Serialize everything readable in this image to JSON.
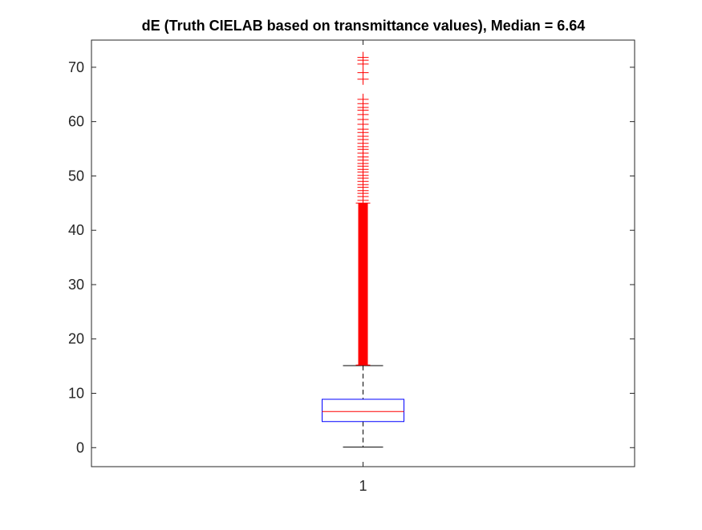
{
  "chart_data": {
    "type": "box",
    "title": "dE (Truth CIELAB based on transmittance values), Median = 6.64",
    "xlabel": "",
    "ylabel": "",
    "categories": [
      "1"
    ],
    "ylim": [
      -3.5,
      75
    ],
    "yticks": [
      0,
      10,
      20,
      30,
      40,
      50,
      60,
      70
    ],
    "ytick_labels": [
      "0",
      "10",
      "20",
      "30",
      "40",
      "50",
      "60",
      "70"
    ],
    "grid": false,
    "box": {
      "category": "1",
      "whisker_low": 0.1,
      "q1": 4.8,
      "median": 6.64,
      "q3": 8.9,
      "whisker_high": 15.1,
      "outliers_dense_range": [
        15.2,
        45.0
      ],
      "outliers": [
        45.5,
        46.2,
        46.8,
        47.3,
        47.9,
        48.4,
        49.0,
        49.6,
        50.1,
        50.7,
        51.2,
        51.8,
        52.3,
        52.9,
        53.5,
        54.2,
        54.9,
        55.4,
        56.0,
        56.7,
        57.3,
        58.0,
        58.6,
        59.5,
        60.4,
        61.3,
        62.1,
        62.6,
        63.3,
        64.1,
        67.8,
        69.0,
        70.6,
        71.3,
        71.8
      ]
    },
    "colors": {
      "box": "#0000ff",
      "median": "#ff0000",
      "outliers": "#ff0000",
      "whiskers": "#000000",
      "axes": "#262626"
    }
  }
}
